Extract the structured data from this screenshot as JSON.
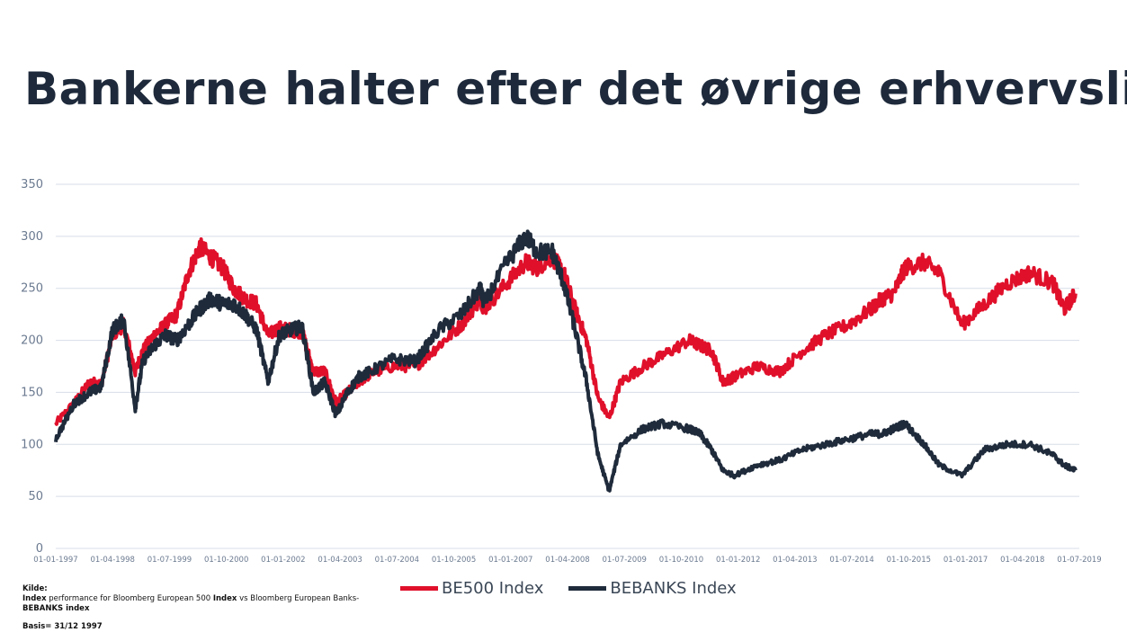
{
  "title": "Bankerne halter efter det øvrige erhvervsliv",
  "colors": {
    "be500": "#e0102b",
    "bebanks": "#1f2b3b",
    "grid": "#d7dde8",
    "axis_text": "#6b7a90"
  },
  "legend": {
    "series1": "BE500 Index",
    "series2": "BEBANKS Index"
  },
  "source": {
    "kilde": "Kilde:",
    "line1_b1": "Index",
    "line1_t1": " performance for Bloomberg European 500 ",
    "line1_b2": "Index",
    "line1_t2": " vs Bloomberg European Banks-",
    "line1_b3": "BEBANKS index",
    "basis": "Basis= 31/12 1997"
  },
  "chart_data": {
    "type": "line",
    "title": "",
    "xlabel": "",
    "ylabel": "",
    "ylim": [
      0,
      350
    ],
    "yticks": [
      0,
      50,
      100,
      150,
      200,
      250,
      300,
      350
    ],
    "xticks": [
      "01-01-1997",
      "01-04-1998",
      "01-07-1999",
      "01-10-2000",
      "01-01-2002",
      "01-04-2003",
      "01-07-2004",
      "01-10-2005",
      "01-01-2007",
      "01-04-2008",
      "01-07-2009",
      "01-10-2010",
      "01-01-2012",
      "01-04-2013",
      "01-07-2014",
      "01-10-2015",
      "01-01-2017",
      "01-04-2018",
      "01-07-2019"
    ],
    "x_range": [
      "1997-01-01",
      "2019-07-01"
    ],
    "grid": true,
    "legend_position": "bottom",
    "series": [
      {
        "name": "BE500 Index",
        "x": [
          "1997-01-01",
          "1997-06-01",
          "1997-10-01",
          "1998-01-01",
          "1998-04-01",
          "1998-07-01",
          "1998-10-01",
          "1998-12-01",
          "1999-03-01",
          "1999-06-01",
          "1999-09-01",
          "1999-12-01",
          "2000-03-01",
          "2000-06-01",
          "2000-09-01",
          "2000-12-01",
          "2001-03-01",
          "2001-06-01",
          "2001-09-01",
          "2001-12-01",
          "2002-03-01",
          "2002-06-01",
          "2002-09-01",
          "2002-12-01",
          "2003-03-01",
          "2003-06-01",
          "2003-09-01",
          "2003-12-01",
          "2004-06-01",
          "2004-12-01",
          "2005-06-01",
          "2005-12-01",
          "2006-05-01",
          "2006-06-01",
          "2006-12-01",
          "2007-05-01",
          "2007-08-01",
          "2007-12-01",
          "2008-03-01",
          "2008-06-01",
          "2008-09-01",
          "2008-12-01",
          "2009-03-01",
          "2009-06-01",
          "2009-12-01",
          "2010-05-01",
          "2010-12-01",
          "2011-03-01",
          "2011-06-01",
          "2011-09-01",
          "2011-12-01",
          "2012-06-01",
          "2012-12-01",
          "2013-06-01",
          "2013-12-01",
          "2014-06-01",
          "2014-12-01",
          "2015-03-01",
          "2015-06-01",
          "2015-09-01",
          "2016-02-01",
          "2016-06-01",
          "2016-12-01",
          "2017-06-01",
          "2017-12-01",
          "2018-06-01",
          "2018-12-01",
          "2019-03-01",
          "2019-06-01"
        ],
        "y": [
          120,
          140,
          160,
          158,
          205,
          215,
          170,
          190,
          205,
          215,
          225,
          265,
          290,
          280,
          270,
          250,
          240,
          235,
          205,
          212,
          210,
          208,
          170,
          170,
          140,
          150,
          160,
          168,
          175,
          175,
          195,
          215,
          240,
          230,
          255,
          275,
          270,
          280,
          265,
          230,
          200,
          145,
          125,
          160,
          175,
          185,
          200,
          195,
          190,
          160,
          165,
          175,
          170,
          190,
          205,
          215,
          230,
          240,
          245,
          270,
          275,
          265,
          215,
          235,
          255,
          265,
          255,
          230,
          245
        ]
      },
      {
        "name": "BEBANKS Index",
        "x": [
          "1997-01-01",
          "1997-06-01",
          "1997-10-01",
          "1998-01-01",
          "1998-04-01",
          "1998-07-01",
          "1998-10-01",
          "1998-12-01",
          "1999-03-01",
          "1999-06-01",
          "1999-09-01",
          "1999-12-01",
          "2000-03-01",
          "2000-06-01",
          "2000-09-01",
          "2000-12-01",
          "2001-03-01",
          "2001-06-01",
          "2001-09-01",
          "2001-12-01",
          "2002-03-01",
          "2002-06-01",
          "2002-09-01",
          "2002-12-01",
          "2003-03-01",
          "2003-06-01",
          "2003-09-01",
          "2003-12-01",
          "2004-06-01",
          "2004-12-01",
          "2005-06-01",
          "2005-12-01",
          "2006-05-01",
          "2006-06-01",
          "2006-12-01",
          "2007-05-01",
          "2007-08-01",
          "2007-12-01",
          "2008-03-01",
          "2008-06-01",
          "2008-09-01",
          "2008-12-01",
          "2009-03-01",
          "2009-06-01",
          "2009-12-01",
          "2010-05-01",
          "2010-12-01",
          "2011-03-01",
          "2011-06-01",
          "2011-09-01",
          "2011-12-01",
          "2012-06-01",
          "2012-12-01",
          "2013-06-01",
          "2013-12-01",
          "2014-06-01",
          "2014-12-01",
          "2015-03-01",
          "2015-06-01",
          "2015-09-01",
          "2016-02-01",
          "2016-06-01",
          "2016-12-01",
          "2017-06-01",
          "2017-12-01",
          "2018-06-01",
          "2018-12-01",
          "2019-03-01",
          "2019-06-01"
        ],
        "y": [
          105,
          140,
          150,
          155,
          210,
          220,
          135,
          180,
          195,
          205,
          200,
          215,
          230,
          240,
          235,
          235,
          225,
          210,
          160,
          205,
          210,
          213,
          150,
          160,
          128,
          150,
          165,
          170,
          182,
          180,
          210,
          225,
          250,
          235,
          275,
          300,
          285,
          285,
          255,
          210,
          160,
          90,
          55,
          100,
          115,
          120,
          115,
          110,
          95,
          75,
          70,
          80,
          85,
          95,
          100,
          105,
          110,
          110,
          115,
          120,
          100,
          80,
          70,
          95,
          100,
          100,
          90,
          80,
          75
        ]
      }
    ]
  }
}
